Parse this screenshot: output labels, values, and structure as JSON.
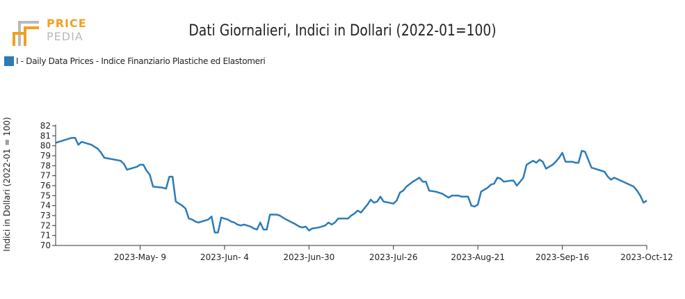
{
  "brand": {
    "word1": "PRICE",
    "word2": "PEDIA"
  },
  "colors": {
    "series": "#2b7bb9",
    "brand_orange": "#f0a020",
    "brand_gray": "#b9b9b9"
  },
  "chart_data": {
    "type": "line",
    "title": "Dati Giornalieri, Indici in Dollari (2022-01=100)",
    "ylabel": "Indici in Dollari (2022-01 = 100)",
    "xlabel": "",
    "ylim": [
      70,
      82
    ],
    "y_ticks": [
      70,
      71,
      72,
      73,
      74,
      75,
      76,
      77,
      78,
      79,
      80,
      81,
      82
    ],
    "x_range": [
      "2023-04-13",
      "2023-10-12"
    ],
    "x_ticks": [
      {
        "date": "2023-05-09",
        "label": "2023-May- 9"
      },
      {
        "date": "2023-06-04",
        "label": "2023-Jun- 4"
      },
      {
        "date": "2023-06-30",
        "label": "2023-Jun-30"
      },
      {
        "date": "2023-07-26",
        "label": "2023-Jul-26"
      },
      {
        "date": "2023-08-21",
        "label": "2023-Aug-21"
      },
      {
        "date": "2023-09-16",
        "label": "2023-Sep-16"
      },
      {
        "date": "2023-10-12",
        "label": "2023-Oct-12"
      }
    ],
    "legend_position": "top-left",
    "series": [
      {
        "name": "I - Daily Data Prices - Indice Finanziario Plastiche ed Elastomeri",
        "color": "#2b7bb9",
        "points": [
          [
            "2023-04-13",
            80.3
          ],
          [
            "2023-04-14",
            80.4
          ],
          [
            "2023-04-17",
            80.7
          ],
          [
            "2023-04-18",
            80.8
          ],
          [
            "2023-04-19",
            80.8
          ],
          [
            "2023-04-20",
            80.1
          ],
          [
            "2023-04-21",
            80.4
          ],
          [
            "2023-04-24",
            80.1
          ],
          [
            "2023-04-25",
            79.9
          ],
          [
            "2023-04-26",
            79.7
          ],
          [
            "2023-04-27",
            79.3
          ],
          [
            "2023-04-28",
            78.8
          ],
          [
            "2023-05-03",
            78.5
          ],
          [
            "2023-05-04",
            78.2
          ],
          [
            "2023-05-05",
            77.6
          ],
          [
            "2023-05-08",
            77.9
          ],
          [
            "2023-05-09",
            78.1
          ],
          [
            "2023-05-10",
            78.1
          ],
          [
            "2023-05-11",
            77.5
          ],
          [
            "2023-05-12",
            77.1
          ],
          [
            "2023-05-13",
            75.9
          ],
          [
            "2023-05-16",
            75.8
          ],
          [
            "2023-05-17",
            75.7
          ],
          [
            "2023-05-18",
            76.9
          ],
          [
            "2023-05-19",
            76.9
          ],
          [
            "2023-05-20",
            74.4
          ],
          [
            "2023-05-22",
            74.0
          ],
          [
            "2023-05-23",
            73.7
          ],
          [
            "2023-05-24",
            72.7
          ],
          [
            "2023-05-25",
            72.6
          ],
          [
            "2023-05-26",
            72.4
          ],
          [
            "2023-05-27",
            72.3
          ],
          [
            "2023-05-29",
            72.5
          ],
          [
            "2023-05-30",
            72.6
          ],
          [
            "2023-05-31",
            72.9
          ],
          [
            "2023-06-01",
            71.3
          ],
          [
            "2023-06-02",
            71.3
          ],
          [
            "2023-06-03",
            72.8
          ],
          [
            "2023-06-05",
            72.6
          ],
          [
            "2023-06-06",
            72.4
          ],
          [
            "2023-06-07",
            72.3
          ],
          [
            "2023-06-08",
            72.1
          ],
          [
            "2023-06-09",
            72.0
          ],
          [
            "2023-06-10",
            72.1
          ],
          [
            "2023-06-12",
            71.9
          ],
          [
            "2023-06-13",
            71.7
          ],
          [
            "2023-06-14",
            71.6
          ],
          [
            "2023-06-15",
            72.3
          ],
          [
            "2023-06-16",
            71.6
          ],
          [
            "2023-06-17",
            71.6
          ],
          [
            "2023-06-18",
            73.1
          ],
          [
            "2023-06-20",
            73.1
          ],
          [
            "2023-06-21",
            73.0
          ],
          [
            "2023-06-22",
            72.8
          ],
          [
            "2023-06-23",
            72.6
          ],
          [
            "2023-06-26",
            72.1
          ],
          [
            "2023-06-27",
            71.9
          ],
          [
            "2023-06-28",
            71.8
          ],
          [
            "2023-06-29",
            71.9
          ],
          [
            "2023-06-30",
            71.5
          ],
          [
            "2023-07-01",
            71.7
          ],
          [
            "2023-07-03",
            71.8
          ],
          [
            "2023-07-05",
            72.0
          ],
          [
            "2023-07-06",
            72.3
          ],
          [
            "2023-07-07",
            72.1
          ],
          [
            "2023-07-08",
            72.3
          ],
          [
            "2023-07-09",
            72.7
          ],
          [
            "2023-07-12",
            72.7
          ],
          [
            "2023-07-13",
            73.0
          ],
          [
            "2023-07-14",
            73.2
          ],
          [
            "2023-07-15",
            73.5
          ],
          [
            "2023-07-16",
            73.3
          ],
          [
            "2023-07-18",
            74.1
          ],
          [
            "2023-07-19",
            74.6
          ],
          [
            "2023-07-20",
            74.3
          ],
          [
            "2023-07-21",
            74.4
          ],
          [
            "2023-07-22",
            74.9
          ],
          [
            "2023-07-23",
            74.4
          ],
          [
            "2023-07-26",
            74.2
          ],
          [
            "2023-07-27",
            74.5
          ],
          [
            "2023-07-28",
            75.3
          ],
          [
            "2023-07-29",
            75.5
          ],
          [
            "2023-07-30",
            75.9
          ],
          [
            "2023-08-01",
            76.4
          ],
          [
            "2023-08-02",
            76.6
          ],
          [
            "2023-08-03",
            76.8
          ],
          [
            "2023-08-04",
            76.4
          ],
          [
            "2023-08-05",
            76.4
          ],
          [
            "2023-08-06",
            75.5
          ],
          [
            "2023-08-08",
            75.4
          ],
          [
            "2023-08-10",
            75.2
          ],
          [
            "2023-08-11",
            75.0
          ],
          [
            "2023-08-12",
            74.8
          ],
          [
            "2023-08-13",
            75.0
          ],
          [
            "2023-08-15",
            75.0
          ],
          [
            "2023-08-16",
            74.9
          ],
          [
            "2023-08-18",
            74.9
          ],
          [
            "2023-08-19",
            74.0
          ],
          [
            "2023-08-20",
            73.9
          ],
          [
            "2023-08-21",
            74.1
          ],
          [
            "2023-08-22",
            75.4
          ],
          [
            "2023-08-24",
            75.8
          ],
          [
            "2023-08-25",
            76.1
          ],
          [
            "2023-08-26",
            76.2
          ],
          [
            "2023-08-27",
            76.8
          ],
          [
            "2023-08-28",
            76.7
          ],
          [
            "2023-08-29",
            76.4
          ],
          [
            "2023-08-31",
            76.5
          ],
          [
            "2023-09-01",
            76.5
          ],
          [
            "2023-09-02",
            76.0
          ],
          [
            "2023-09-03",
            76.4
          ],
          [
            "2023-09-04",
            76.8
          ],
          [
            "2023-09-05",
            78.1
          ],
          [
            "2023-09-06",
            78.3
          ],
          [
            "2023-09-07",
            78.5
          ],
          [
            "2023-09-08",
            78.3
          ],
          [
            "2023-09-09",
            78.6
          ],
          [
            "2023-09-10",
            78.4
          ],
          [
            "2023-09-11",
            77.7
          ],
          [
            "2023-09-13",
            78.1
          ],
          [
            "2023-09-14",
            78.4
          ],
          [
            "2023-09-15",
            78.8
          ],
          [
            "2023-09-16",
            79.3
          ],
          [
            "2023-09-17",
            78.4
          ],
          [
            "2023-09-19",
            78.4
          ],
          [
            "2023-09-20",
            78.3
          ],
          [
            "2023-09-21",
            78.3
          ],
          [
            "2023-09-22",
            79.5
          ],
          [
            "2023-09-23",
            79.4
          ],
          [
            "2023-09-24",
            78.6
          ],
          [
            "2023-09-25",
            77.8
          ],
          [
            "2023-09-26",
            77.7
          ],
          [
            "2023-09-28",
            77.5
          ],
          [
            "2023-09-29",
            77.4
          ],
          [
            "2023-09-30",
            76.9
          ],
          [
            "2023-10-01",
            76.6
          ],
          [
            "2023-10-02",
            76.8
          ],
          [
            "2023-10-08",
            75.9
          ],
          [
            "2023-10-09",
            75.5
          ],
          [
            "2023-10-10",
            75.0
          ],
          [
            "2023-10-11",
            74.3
          ],
          [
            "2023-10-12",
            74.5
          ]
        ]
      }
    ]
  }
}
